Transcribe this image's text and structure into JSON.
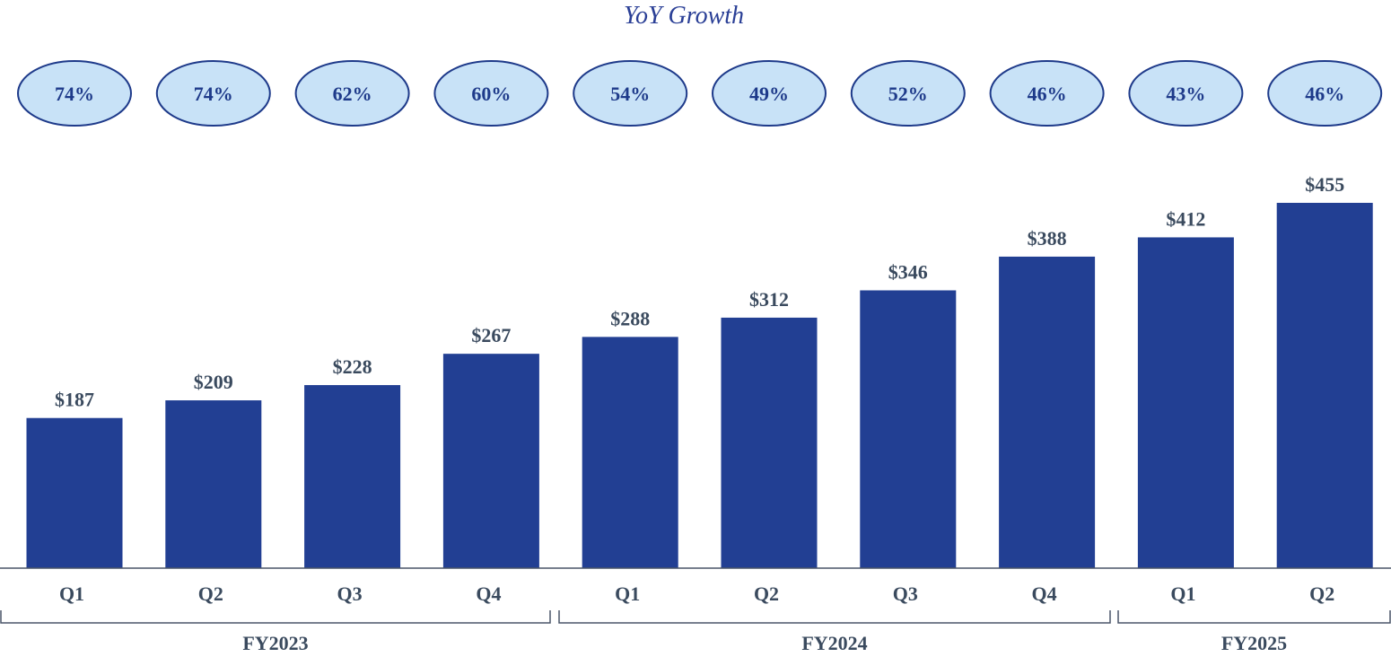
{
  "chart_data": {
    "type": "bar",
    "title": "YoY Growth",
    "categories": [
      "Q1",
      "Q2",
      "Q3",
      "Q4",
      "Q1",
      "Q2",
      "Q3",
      "Q4",
      "Q1",
      "Q2"
    ],
    "values": [
      187,
      209,
      228,
      267,
      288,
      312,
      346,
      388,
      412,
      455
    ],
    "value_labels": [
      "$187",
      "$209",
      "$228",
      "$267",
      "$288",
      "$312",
      "$346",
      "$388",
      "$412",
      "$455"
    ],
    "yoy_growth": [
      "74%",
      "74%",
      "62%",
      "60%",
      "54%",
      "49%",
      "52%",
      "46%",
      "43%",
      "46%"
    ],
    "groups": [
      {
        "label": "FY2023",
        "start": 0,
        "end": 3
      },
      {
        "label": "FY2024",
        "start": 4,
        "end": 7
      },
      {
        "label": "FY2025",
        "start": 8,
        "end": 9
      }
    ],
    "ylim": [
      0,
      455
    ],
    "xlabel": "",
    "ylabel": "",
    "grid": false,
    "legend": "none",
    "colors": {
      "bar": "#223f93",
      "pill_fill": "#c8e2f7",
      "pill_stroke": "#1e3a8a",
      "text": "#3a4a5e"
    }
  }
}
